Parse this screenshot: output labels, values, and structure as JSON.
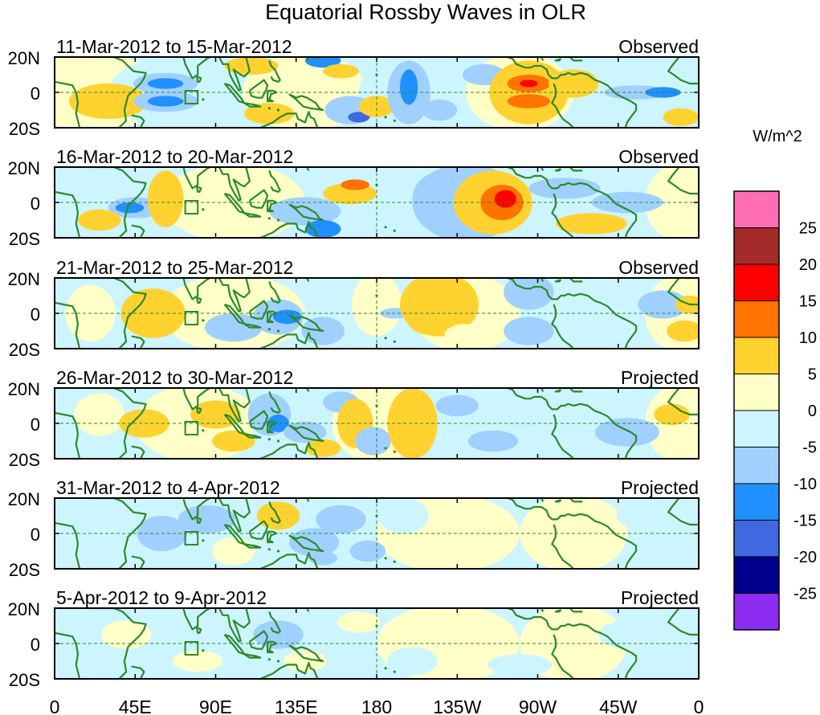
{
  "title": "Equatorial Rossby Waves in OLR",
  "lat_labels": [
    "20N",
    "0",
    "20S"
  ],
  "lon_labels": [
    "0",
    "45E",
    "90E",
    "135E",
    "180",
    "135W",
    "90W",
    "45W",
    "0"
  ],
  "colorbar": {
    "unit": "W/m^2",
    "tick_labels": [
      "25",
      "20",
      "15",
      "10",
      "5",
      "0",
      "-5",
      "-10",
      "-15",
      "-20",
      "-25"
    ],
    "colors": [
      "#ff6eb4",
      "#a52a2a",
      "#ff0000",
      "#ff7300",
      "#ffd230",
      "#ffffc8",
      "#cdf5ff",
      "#a0d0ff",
      "#2090ff",
      "#4068e0",
      "#00008c",
      "#8c2cf0"
    ]
  },
  "panels": [
    {
      "date_range": "11-Mar-2012 to 15-Mar-2012",
      "status": "Observed"
    },
    {
      "date_range": "16-Mar-2012 to 20-Mar-2012",
      "status": "Observed"
    },
    {
      "date_range": "21-Mar-2012 to 25-Mar-2012",
      "status": "Observed"
    },
    {
      "date_range": "26-Mar-2012 to 30-Mar-2012",
      "status": "Projected"
    },
    {
      "date_range": "31-Mar-2012 to 4-Apr-2012",
      "status": "Projected"
    },
    {
      "date_range": "5-Apr-2012 to 9-Apr-2012",
      "status": "Projected"
    }
  ],
  "colors": {
    "coast": "#2a8a2a",
    "frame": "#000000",
    "equator": "#2a8a2a"
  }
}
